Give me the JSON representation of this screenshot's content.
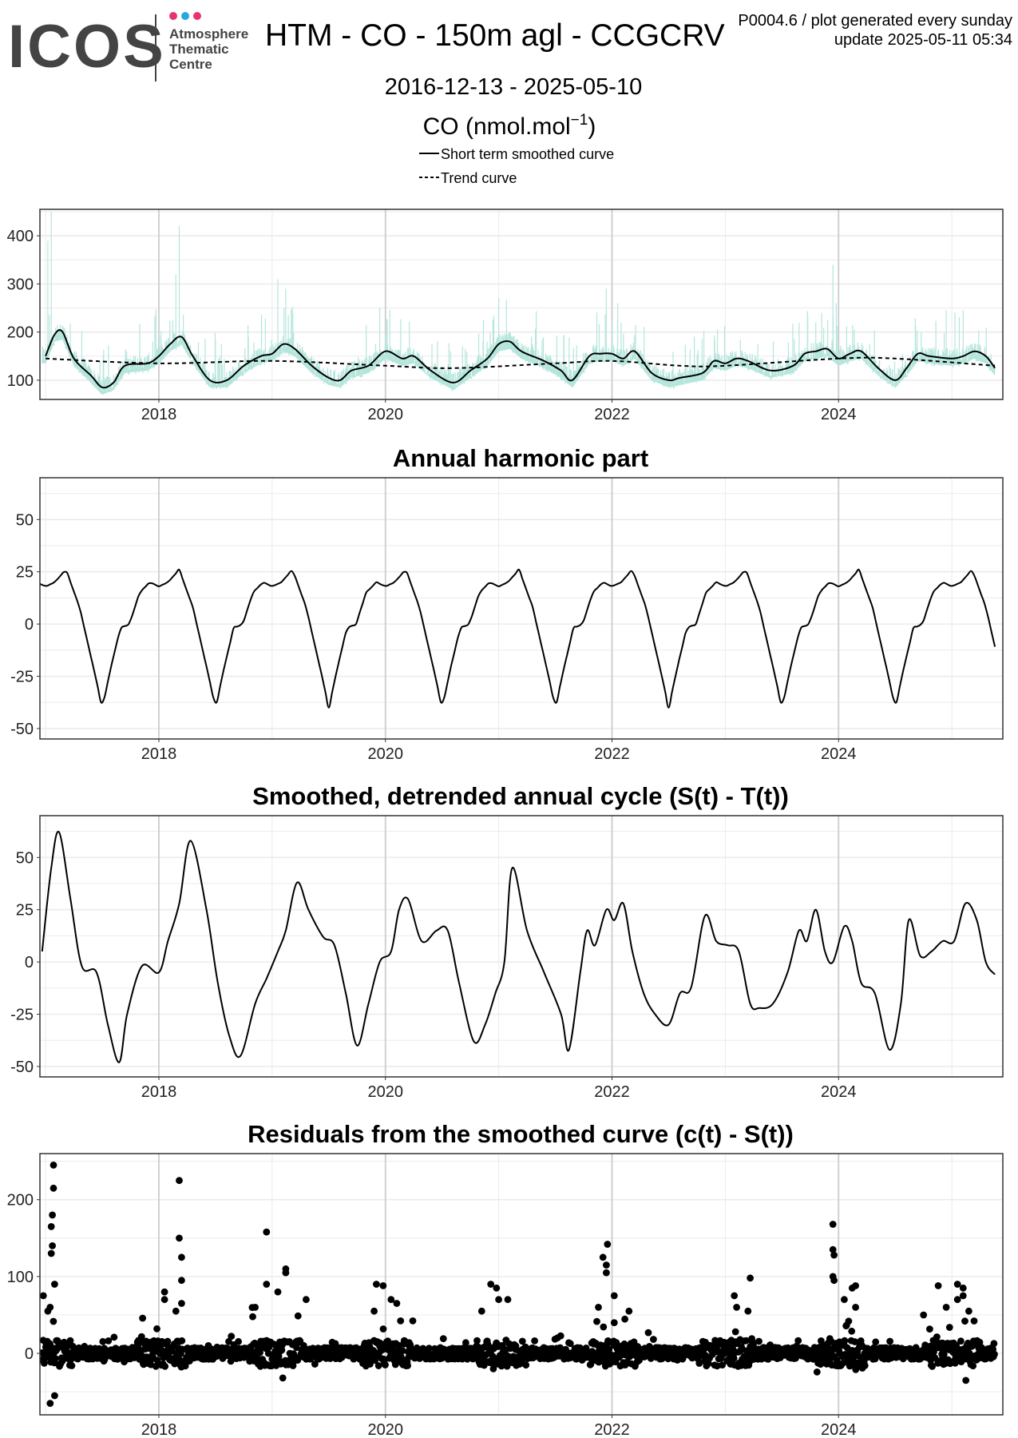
{
  "header": {
    "logo_text": "ICOS",
    "logo_sub": [
      "Atmosphere",
      "Thematic",
      "Centre"
    ],
    "logo_dot_colors": [
      "#e8336f",
      "#2aa6e0",
      "#e8336f"
    ],
    "title": "HTM - CO - 150m agl - CCGCRV",
    "meta_line1": "P0004.6 / plot generated every sunday",
    "meta_line2": "update  2025-05-11 05:34",
    "date_range": "2016-12-13 - 2025-05-10",
    "unit_main": "CO (nmol.mol",
    "unit_sup": "−1",
    "unit_close": ")",
    "legend": [
      {
        "label": "Short term smoothed curve",
        "dash": "solid"
      },
      {
        "label": "Trend curve",
        "dash": "dashed"
      }
    ]
  },
  "colors": {
    "raw_data": "#b5e6dc",
    "curve": "#000000",
    "grid_major": "#cccccc",
    "grid_minor": "#ebebeb",
    "panel_border": "#333333"
  },
  "chart_data": [
    {
      "type": "line",
      "title": "",
      "xlabel": "",
      "ylabel": "CO (nmol.mol-1)",
      "xlim": [
        2016.95,
        2025.45
      ],
      "ylim": [
        60,
        455
      ],
      "x_ticks": [
        2018,
        2020,
        2022,
        2024
      ],
      "x_tick_labels": [
        "2018",
        "2020",
        "2022",
        "2024"
      ],
      "y_ticks": [
        100,
        200,
        300,
        400
      ],
      "y_tick_labels": [
        "100",
        "200",
        "300",
        "400"
      ],
      "grid": true,
      "series": [
        {
          "name": "Short term smoothed curve",
          "style": "solid",
          "x": [
            2017.0,
            2017.08,
            2017.15,
            2017.25,
            2017.4,
            2017.5,
            2017.6,
            2017.7,
            2017.9,
            2018.0,
            2018.1,
            2018.2,
            2018.3,
            2018.45,
            2018.6,
            2018.75,
            2018.9,
            2019.0,
            2019.1,
            2019.2,
            2019.35,
            2019.5,
            2019.6,
            2019.7,
            2019.85,
            2020.0,
            2020.15,
            2020.25,
            2020.4,
            2020.6,
            2020.75,
            2020.9,
            2021.0,
            2021.1,
            2021.2,
            2021.4,
            2021.55,
            2021.65,
            2021.8,
            2021.9,
            2022.0,
            2022.1,
            2022.2,
            2022.35,
            2022.5,
            2022.6,
            2022.8,
            2022.9,
            2023.0,
            2023.1,
            2023.2,
            2023.4,
            2023.6,
            2023.7,
            2023.8,
            2023.9,
            2024.0,
            2024.1,
            2024.2,
            2024.35,
            2024.5,
            2024.6,
            2024.7,
            2024.8,
            2025.0,
            2025.1,
            2025.2,
            2025.3,
            2025.38
          ],
          "y": [
            150,
            195,
            200,
            145,
            110,
            85,
            95,
            130,
            135,
            150,
            175,
            190,
            150,
            100,
            100,
            130,
            150,
            155,
            175,
            165,
            130,
            105,
            100,
            120,
            130,
            160,
            145,
            150,
            120,
            95,
            120,
            145,
            175,
            180,
            160,
            140,
            120,
            100,
            150,
            155,
            155,
            145,
            160,
            115,
            100,
            105,
            115,
            140,
            135,
            145,
            140,
            120,
            130,
            155,
            160,
            165,
            145,
            155,
            160,
            125,
            100,
            125,
            155,
            150,
            145,
            150,
            160,
            150,
            125
          ]
        },
        {
          "name": "Trend curve",
          "style": "dashed",
          "x": [
            2017.0,
            2018.0,
            2019.0,
            2020.0,
            2020.6,
            2021.5,
            2022.0,
            2022.6,
            2023.0,
            2024.0,
            2024.5,
            2025.38
          ],
          "y": [
            145,
            135,
            140,
            130,
            125,
            135,
            140,
            130,
            130,
            145,
            145,
            130
          ]
        }
      ],
      "raw_peaks": [
        {
          "x": 2017.05,
          "y": 450
        },
        {
          "x": 2017.02,
          "y": 390
        },
        {
          "x": 2018.18,
          "y": 420
        },
        {
          "x": 2018.15,
          "y": 320
        },
        {
          "x": 2019.05,
          "y": 310
        },
        {
          "x": 2019.12,
          "y": 290
        },
        {
          "x": 2019.95,
          "y": 250
        },
        {
          "x": 2021.0,
          "y": 270
        },
        {
          "x": 2021.95,
          "y": 290
        },
        {
          "x": 2022.05,
          "y": 260
        },
        {
          "x": 2023.95,
          "y": 340
        },
        {
          "x": 2023.98,
          "y": 260
        },
        {
          "x": 2024.95,
          "y": 245
        },
        {
          "x": 2025.1,
          "y": 245
        }
      ]
    },
    {
      "type": "line",
      "title": "Annual harmonic part",
      "xlabel": "",
      "ylabel": "",
      "xlim": [
        2016.95,
        2025.45
      ],
      "ylim": [
        -55,
        70
      ],
      "x_ticks": [
        2018,
        2020,
        2022,
        2024
      ],
      "x_tick_labels": [
        "2018",
        "2020",
        "2022",
        "2024"
      ],
      "y_ticks": [
        -50,
        -25,
        0,
        25,
        50
      ],
      "y_tick_labels": [
        "-50",
        "-25",
        "0",
        "25",
        "50"
      ],
      "grid": true,
      "cycle": {
        "phase": [
          0.0,
          0.08,
          0.18,
          0.3,
          0.44,
          0.5,
          0.58,
          0.66,
          0.74,
          0.83,
          0.92,
          1.0
        ],
        "value": [
          18,
          20,
          26,
          8,
          -25,
          -40,
          -20,
          -2,
          0,
          15,
          20,
          18
        ]
      },
      "series": [
        {
          "name": "",
          "style": "solid",
          "x_start": 2016.95,
          "x_end": 2025.38
        }
      ]
    },
    {
      "type": "line",
      "title": "Smoothed, detrended annual cycle (S(t) - T(t))",
      "xlabel": "",
      "ylabel": "",
      "xlim": [
        2016.95,
        2025.45
      ],
      "ylim": [
        -55,
        70
      ],
      "x_ticks": [
        2018,
        2020,
        2022,
        2024
      ],
      "x_tick_labels": [
        "2018",
        "2020",
        "2022",
        "2024"
      ],
      "y_ticks": [
        -50,
        -25,
        0,
        25,
        50
      ],
      "y_tick_labels": [
        "-50",
        "-25",
        "0",
        "25",
        "50"
      ],
      "grid": true,
      "series": [
        {
          "name": "",
          "style": "solid",
          "x": [
            2016.97,
            2017.05,
            2017.12,
            2017.22,
            2017.32,
            2017.45,
            2017.55,
            2017.65,
            2017.72,
            2017.85,
            2018.0,
            2018.08,
            2018.18,
            2018.28,
            2018.42,
            2018.52,
            2018.62,
            2018.72,
            2018.85,
            2018.95,
            2019.05,
            2019.12,
            2019.22,
            2019.32,
            2019.45,
            2019.55,
            2019.65,
            2019.75,
            2019.85,
            2019.95,
            2020.05,
            2020.12,
            2020.2,
            2020.32,
            2020.45,
            2020.55,
            2020.65,
            2020.78,
            2020.88,
            2020.97,
            2021.05,
            2021.12,
            2021.25,
            2021.4,
            2021.55,
            2021.62,
            2021.72,
            2021.78,
            2021.85,
            2021.95,
            2022.02,
            2022.1,
            2022.18,
            2022.28,
            2022.38,
            2022.5,
            2022.6,
            2022.7,
            2022.82,
            2022.92,
            2023.02,
            2023.12,
            2023.22,
            2023.3,
            2023.42,
            2023.55,
            2023.65,
            2023.72,
            2023.8,
            2023.88,
            2023.95,
            2024.05,
            2024.12,
            2024.2,
            2024.32,
            2024.45,
            2024.55,
            2024.62,
            2024.72,
            2024.82,
            2024.92,
            2025.02,
            2025.12,
            2025.22,
            2025.3,
            2025.38
          ],
          "y": [
            5,
            45,
            62,
            30,
            -2,
            -5,
            -30,
            -48,
            -25,
            -2,
            -5,
            10,
            28,
            58,
            25,
            -10,
            -35,
            -45,
            -20,
            -8,
            5,
            15,
            38,
            25,
            12,
            8,
            -15,
            -40,
            -20,
            0,
            5,
            25,
            30,
            10,
            15,
            15,
            -10,
            -38,
            -30,
            -15,
            0,
            45,
            15,
            -5,
            -25,
            -42,
            -5,
            15,
            8,
            25,
            20,
            28,
            5,
            -15,
            -25,
            -30,
            -15,
            -12,
            22,
            10,
            8,
            5,
            -20,
            -22,
            -20,
            -5,
            15,
            10,
            25,
            5,
            0,
            17,
            10,
            -10,
            -15,
            -42,
            -20,
            20,
            3,
            5,
            10,
            10,
            28,
            20,
            0,
            -6
          ]
        }
      ]
    },
    {
      "type": "scatter",
      "title": "Residuals from the smoothed curve (c(t) - S(t))",
      "xlabel": "",
      "ylabel": "",
      "xlim": [
        2016.95,
        2025.45
      ],
      "ylim": [
        -80,
        260
      ],
      "x_ticks": [
        2018,
        2020,
        2022,
        2024
      ],
      "x_tick_labels": [
        "2018",
        "2020",
        "2022",
        "2024"
      ],
      "y_ticks": [
        0,
        100,
        200
      ],
      "y_tick_labels": [
        "0",
        "100",
        "200"
      ],
      "grid": true,
      "outliers": [
        {
          "x": 2017.07,
          "y": 245
        },
        {
          "x": 2017.07,
          "y": 215
        },
        {
          "x": 2017.06,
          "y": 180
        },
        {
          "x": 2017.05,
          "y": 165
        },
        {
          "x": 2017.06,
          "y": 140
        },
        {
          "x": 2017.05,
          "y": 130
        },
        {
          "x": 2016.98,
          "y": 75
        },
        {
          "x": 2017.02,
          "y": 55
        },
        {
          "x": 2017.08,
          "y": 90
        },
        {
          "x": 2017.04,
          "y": 60
        },
        {
          "x": 2017.04,
          "y": -65
        },
        {
          "x": 2017.08,
          "y": -55
        },
        {
          "x": 2018.18,
          "y": 225
        },
        {
          "x": 2018.18,
          "y": 150
        },
        {
          "x": 2018.2,
          "y": 125
        },
        {
          "x": 2018.2,
          "y": 95
        },
        {
          "x": 2018.2,
          "y": 65
        },
        {
          "x": 2018.05,
          "y": 80
        },
        {
          "x": 2018.05,
          "y": 70
        },
        {
          "x": 2018.15,
          "y": 55
        },
        {
          "x": 2018.95,
          "y": 158
        },
        {
          "x": 2019.12,
          "y": 110
        },
        {
          "x": 2019.12,
          "y": 105
        },
        {
          "x": 2019.05,
          "y": 80
        },
        {
          "x": 2018.95,
          "y": 90
        },
        {
          "x": 2019.3,
          "y": 70
        },
        {
          "x": 2018.85,
          "y": 60
        },
        {
          "x": 2019.98,
          "y": 88
        },
        {
          "x": 2019.92,
          "y": 90
        },
        {
          "x": 2020.05,
          "y": 70
        },
        {
          "x": 2020.1,
          "y": 65
        },
        {
          "x": 2019.9,
          "y": 55
        },
        {
          "x": 2020.93,
          "y": 90
        },
        {
          "x": 2020.98,
          "y": 85
        },
        {
          "x": 2021.08,
          "y": 70
        },
        {
          "x": 2021.0,
          "y": 70
        },
        {
          "x": 2020.85,
          "y": 55
        },
        {
          "x": 2021.96,
          "y": 142
        },
        {
          "x": 2021.92,
          "y": 125
        },
        {
          "x": 2021.95,
          "y": 115
        },
        {
          "x": 2021.95,
          "y": 105
        },
        {
          "x": 2022.02,
          "y": 75
        },
        {
          "x": 2021.88,
          "y": 60
        },
        {
          "x": 2022.15,
          "y": 55
        },
        {
          "x": 2022.02,
          "y": 40
        },
        {
          "x": 2023.08,
          "y": 75
        },
        {
          "x": 2023.22,
          "y": 98
        },
        {
          "x": 2023.1,
          "y": 60
        },
        {
          "x": 2023.2,
          "y": 55
        },
        {
          "x": 2023.95,
          "y": 168
        },
        {
          "x": 2023.95,
          "y": 135
        },
        {
          "x": 2023.96,
          "y": 128
        },
        {
          "x": 2023.95,
          "y": 100
        },
        {
          "x": 2023.96,
          "y": 95
        },
        {
          "x": 2024.15,
          "y": 88
        },
        {
          "x": 2024.12,
          "y": 85
        },
        {
          "x": 2024.05,
          "y": 70
        },
        {
          "x": 2024.15,
          "y": 60
        },
        {
          "x": 2024.88,
          "y": 88
        },
        {
          "x": 2025.05,
          "y": 90
        },
        {
          "x": 2025.1,
          "y": 85
        },
        {
          "x": 2025.1,
          "y": 75
        },
        {
          "x": 2025.05,
          "y": 70
        },
        {
          "x": 2024.95,
          "y": 60
        },
        {
          "x": 2025.15,
          "y": 55
        },
        {
          "x": 2024.75,
          "y": 50
        }
      ]
    }
  ]
}
